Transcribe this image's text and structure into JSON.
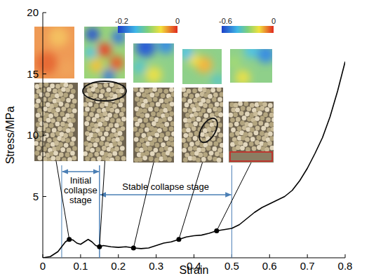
{
  "chart_data": {
    "type": "line",
    "x_label": "Strain",
    "y_label": "Stress/MPa",
    "xlim": [
      0,
      0.8
    ],
    "ylim": [
      0,
      20
    ],
    "xticks": [
      0,
      0.1,
      0.2,
      0.3,
      0.4,
      0.5,
      0.6,
      0.7,
      0.8
    ],
    "yticks": [
      5,
      10,
      15,
      20
    ],
    "x": [
      0,
      0.02,
      0.04,
      0.05,
      0.06,
      0.07,
      0.08,
      0.09,
      0.1,
      0.11,
      0.12,
      0.13,
      0.14,
      0.15,
      0.16,
      0.18,
      0.2,
      0.22,
      0.24,
      0.26,
      0.28,
      0.3,
      0.32,
      0.34,
      0.36,
      0.38,
      0.4,
      0.42,
      0.44,
      0.46,
      0.48,
      0.5,
      0.52,
      0.54,
      0.56,
      0.58,
      0.6,
      0.62,
      0.64,
      0.66,
      0.68,
      0.7,
      0.72,
      0.74,
      0.76,
      0.78,
      0.8
    ],
    "series": [
      {
        "type": "line",
        "color": "#000000",
        "line_style": "solid",
        "values": [
          0,
          0.1,
          0.5,
          0.9,
          1.3,
          1.5,
          1.45,
          1.2,
          1.1,
          1.3,
          1.5,
          1.3,
          1.0,
          0.9,
          1.0,
          0.9,
          0.85,
          0.9,
          0.8,
          0.75,
          0.8,
          1.0,
          1.2,
          1.3,
          1.5,
          1.7,
          1.8,
          1.85,
          2.0,
          2.2,
          2.3,
          2.4,
          2.7,
          3.2,
          3.7,
          4.1,
          4.4,
          4.7,
          5.0,
          5.5,
          6.3,
          7.3,
          8.5,
          9.8,
          11.5,
          13.6,
          16.0
        ]
      },
      {
        "type": "scatter",
        "color": "#000000",
        "marker": "circle",
        "x": [
          0.07,
          0.15,
          0.24,
          0.36,
          0.46
        ],
        "values": [
          1.5,
          0.9,
          0.8,
          1.5,
          2.2
        ]
      }
    ],
    "stages": [
      {
        "label": "Initial collapse stage",
        "range": [
          0.05,
          0.15
        ]
      },
      {
        "label": "Stable collapse stage",
        "range": [
          0.15,
          0.5
        ]
      }
    ],
    "color_bars": [
      {
        "range": [
          -0.2,
          0
        ],
        "ticks": [
          -0.2,
          0
        ]
      },
      {
        "range": [
          -0.6,
          0
        ],
        "ticks": [
          -0.6,
          0
        ]
      }
    ]
  }
}
